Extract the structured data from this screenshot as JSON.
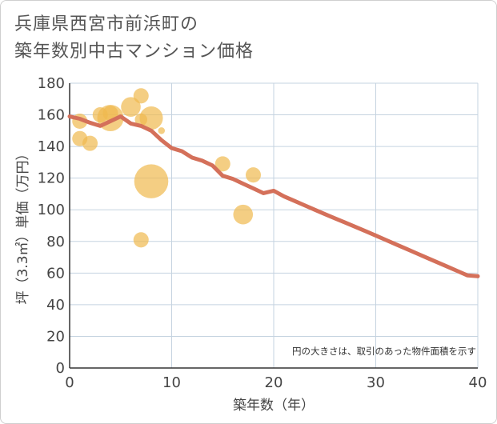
{
  "title_lines": [
    "兵庫県西宮市前浜町の",
    "築年数別中古マンション価格"
  ],
  "chart_data": {
    "type": "scatter",
    "xlabel": "築年数（年）",
    "ylabel": "坪（3.3㎡）単価（万円）",
    "xlim": [
      0,
      40
    ],
    "ylim": [
      0,
      180
    ],
    "xticks": [
      0,
      10,
      20,
      30,
      40
    ],
    "yticks": [
      0,
      20,
      40,
      60,
      80,
      100,
      120,
      140,
      160,
      180
    ],
    "grid": true,
    "note": "円の大きさは、取引のあった物件面積を示す",
    "colors": {
      "bubble": "#f0b94e",
      "trend": "#d4705a",
      "grid": "#c5d3e0",
      "axis": "#333333"
    },
    "bubbles": [
      {
        "x": 1,
        "y": 156,
        "size": 3
      },
      {
        "x": 1,
        "y": 145,
        "size": 3
      },
      {
        "x": 2,
        "y": 142,
        "size": 3
      },
      {
        "x": 3,
        "y": 160,
        "size": 3
      },
      {
        "x": 4,
        "y": 158,
        "size": 9
      },
      {
        "x": 4,
        "y": 161,
        "size": 3
      },
      {
        "x": 6,
        "y": 165,
        "size": 5
      },
      {
        "x": 7,
        "y": 172,
        "size": 3
      },
      {
        "x": 7,
        "y": 157,
        "size": 2
      },
      {
        "x": 7,
        "y": 81,
        "size": 3
      },
      {
        "x": 8,
        "y": 158,
        "size": 7
      },
      {
        "x": 8,
        "y": 118,
        "size": 15
      },
      {
        "x": 9,
        "y": 150,
        "size": 0.6
      },
      {
        "x": 15,
        "y": 129,
        "size": 3
      },
      {
        "x": 17,
        "y": 97,
        "size": 5
      },
      {
        "x": 18,
        "y": 122,
        "size": 3
      }
    ],
    "trend": {
      "x": [
        0,
        1,
        2,
        3,
        4,
        5,
        6,
        7,
        8,
        9,
        10,
        11,
        12,
        13,
        14,
        15,
        16,
        17,
        18,
        19,
        20,
        21,
        22,
        23,
        24,
        25,
        26,
        27,
        28,
        29,
        30,
        31,
        32,
        33,
        34,
        35,
        36,
        37,
        38,
        39,
        40
      ],
      "y": [
        159,
        157.5,
        155,
        153,
        156,
        159,
        154.5,
        153,
        150,
        144,
        139,
        137,
        133,
        131,
        128,
        121.5,
        119.5,
        116.5,
        113.5,
        110.5,
        112,
        108.5,
        105.7,
        102.9,
        100.1,
        97.3,
        94.6,
        91.9,
        89.2,
        86.5,
        83.7,
        80.9,
        78.1,
        75.3,
        72.5,
        69.7,
        66.9,
        64.1,
        61.3,
        58.5,
        58
      ]
    }
  }
}
